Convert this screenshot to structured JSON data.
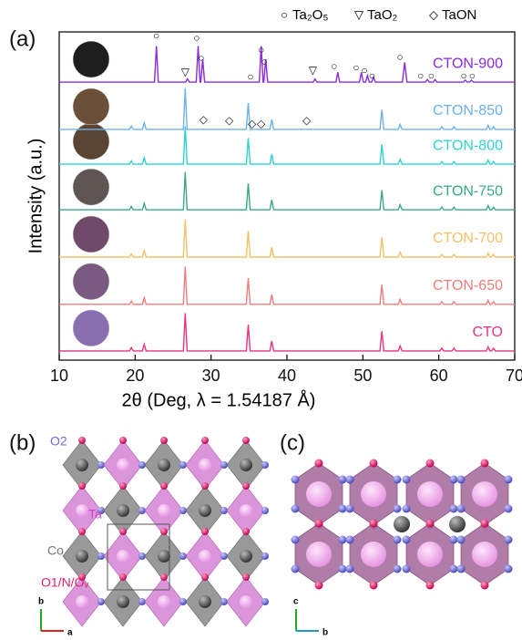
{
  "chart_data": {
    "type": "line",
    "panel_label": "(a)",
    "xlabel": "2θ (Deg, λ = 1.54187 Å)",
    "ylabel": "Intensity (a.u.)",
    "xlim": [
      10,
      70
    ],
    "xticks": [
      10,
      20,
      30,
      40,
      50,
      60,
      70
    ],
    "ylim": [
      0,
      100
    ],
    "x": [
      10,
      19.25,
      19.5,
      19.75,
      20.95,
      21.2,
      21.45,
      26.35,
      26.6,
      26.85,
      34.65,
      34.9,
      35.15,
      37.75,
      38,
      38.25,
      52.25,
      52.5,
      52.75,
      54.65,
      54.9,
      55.15,
      60.15,
      60.4,
      60.65,
      61.75,
      62,
      62.25,
      66.25,
      66.5,
      66.75,
      66.95,
      67.2,
      67.45,
      70
    ],
    "series": [
      {
        "name": "CTO",
        "color": "#e8347f",
        "values": [
          2.8,
          2.8,
          3.8,
          2.8,
          2.8,
          4.8,
          2.8,
          2.8,
          14.3,
          2.8,
          2.8,
          10.8,
          2.8,
          2.8,
          5.8,
          2.8,
          2.8,
          8.8,
          2.8,
          2.8,
          4.3,
          2.8,
          2.8,
          3.6,
          2.8,
          2.8,
          3.6,
          2.8,
          2.8,
          4,
          2.8,
          2.8,
          3.6,
          2.8,
          2.8
        ]
      },
      {
        "name": "CTON-650",
        "color": "#f07c7c",
        "values": [
          17,
          17,
          18,
          17,
          17,
          19,
          17,
          17,
          28.5,
          17,
          17,
          25,
          17,
          17,
          20,
          17,
          17,
          23,
          17,
          17,
          18.5,
          17,
          17,
          17.8,
          17,
          17,
          17.8,
          17,
          17,
          18.2,
          17,
          17,
          17.8,
          17,
          17
        ]
      },
      {
        "name": "CTON-700",
        "color": "#f4c16a",
        "values": [
          31.4,
          31.4,
          32.4,
          31.4,
          31.4,
          33.4,
          31.4,
          31.4,
          42.9,
          31.4,
          31.4,
          39.4,
          31.4,
          31.4,
          34.4,
          31.4,
          31.4,
          37.4,
          31.4,
          31.4,
          32.9,
          31.4,
          31.4,
          32.2,
          31.4,
          31.4,
          32.2,
          31.4,
          31.4,
          32.6,
          31.4,
          31.4,
          32.2,
          31.4,
          31.4
        ]
      },
      {
        "name": "CTON-750",
        "color": "#3aa888",
        "values": [
          45.8,
          45.8,
          46.8,
          45.8,
          45.8,
          47.8,
          45.8,
          45.8,
          57.3,
          45.8,
          45.8,
          53.8,
          45.8,
          45.8,
          48.8,
          45.8,
          45.8,
          51.8,
          45.8,
          45.8,
          47.3,
          45.8,
          45.8,
          46.6,
          45.8,
          45.8,
          46.6,
          45.8,
          45.8,
          47,
          45.8,
          45.8,
          46.6,
          45.8,
          45.8
        ]
      },
      {
        "name": "CTON-800",
        "color": "#2fd2d2",
        "values": [
          59.7,
          59.7,
          60.7,
          59.7,
          59.7,
          61.7,
          59.7,
          59.7,
          71.2,
          59.7,
          59.7,
          67.7,
          59.7,
          59.7,
          62.7,
          59.7,
          59.7,
          65.7,
          59.7,
          59.7,
          61.2,
          59.7,
          59.7,
          60.5,
          59.7,
          59.7,
          60.5,
          59.7,
          59.7,
          60.9,
          59.7,
          59.7,
          60.5,
          59.7,
          59.7
        ]
      },
      {
        "name": "CTON-850",
        "color": "#6cb2e8",
        "values": [
          70.3,
          70.3,
          71.3,
          70.3,
          70.3,
          72.3,
          70.3,
          70.3,
          82.8,
          70.3,
          70.3,
          78.3,
          70.3,
          70.3,
          73.3,
          70.3,
          70.3,
          76.3,
          70.3,
          70.3,
          71.8,
          70.3,
          70.3,
          71.1,
          70.3,
          70.3,
          71.1,
          70.3,
          70.3,
          71.5,
          70.3,
          70.3,
          71.1,
          70.3,
          70.3
        ]
      },
      {
        "name": "CTON-900",
        "color": "#8a2be2",
        "x": [
          10,
          22.55,
          22.8,
          23.05,
          26.65,
          26.9,
          27.15,
          28.05,
          28.3,
          28.55,
          28.65,
          28.9,
          29.15,
          36.35,
          36.6,
          36.85,
          36.95,
          37.2,
          37.45,
          43.45,
          43.7,
          43.95,
          46.45,
          46.7,
          46.95,
          49.55,
          49.8,
          50.05,
          50.35,
          50.6,
          50.85,
          51.15,
          51.4,
          51.65,
          55.2,
          55.5,
          55.8,
          58.25,
          58.5,
          58.75,
          59.25,
          59.5,
          59.75,
          63.25,
          63.5,
          63.75,
          64.05,
          64.3,
          64.55,
          70
        ],
        "values": [
          84.7,
          84.7,
          95.7,
          84.7,
          84.7,
          85.7,
          84.7,
          84.7,
          95.7,
          84.7,
          84.7,
          91.7,
          84.7,
          84.7,
          95.7,
          84.7,
          84.7,
          91.7,
          84.7,
          84.7,
          85.7,
          84.7,
          84.7,
          87.7,
          84.7,
          84.7,
          87.7,
          84.7,
          84.7,
          86.7,
          84.7,
          84.7,
          86.2,
          84.7,
          84.7,
          90.7,
          84.7,
          84.7,
          85.5,
          84.7,
          84.7,
          85.5,
          84.7,
          84.7,
          85.3,
          84.7,
          84.7,
          85.3,
          84.7,
          84.7
        ]
      }
    ],
    "phases": [
      {
        "name": "Ta₂O₅",
        "symbol": "○",
        "x": [
          22.8,
          28.1,
          28.7,
          35.2,
          36.6,
          37.0,
          46.2,
          49.1,
          50.2,
          51.2,
          54.9,
          57.6,
          59.0,
          63.3,
          64.4
        ],
        "y": [
          98.6,
          98.0,
          91.9,
          86.1,
          94.4,
          90.8,
          89.4,
          88.9,
          88.1,
          86.4,
          92.2,
          86.4,
          86.4,
          86.4,
          86.4
        ]
      },
      {
        "name": "TaO₂",
        "symbol": "▽",
        "x": [
          26.6,
          43.4
        ],
        "y": [
          87.5,
          88.1
        ]
      },
      {
        "name": "TaON",
        "symbol": "◇",
        "x": [
          29.0,
          32.4,
          35.4,
          36.6,
          42.6
        ],
        "y": [
          73.1,
          72.8,
          71.9,
          71.9,
          72.8
        ]
      }
    ]
  },
  "panel_b": {
    "label": "(b)",
    "atoms": [
      "O2",
      "Ta",
      "Co",
      "O1/N/Oᵥ"
    ],
    "axes": [
      "b",
      "a"
    ]
  },
  "panel_c": {
    "label": "(c)",
    "axes": [
      "c",
      "b"
    ]
  }
}
